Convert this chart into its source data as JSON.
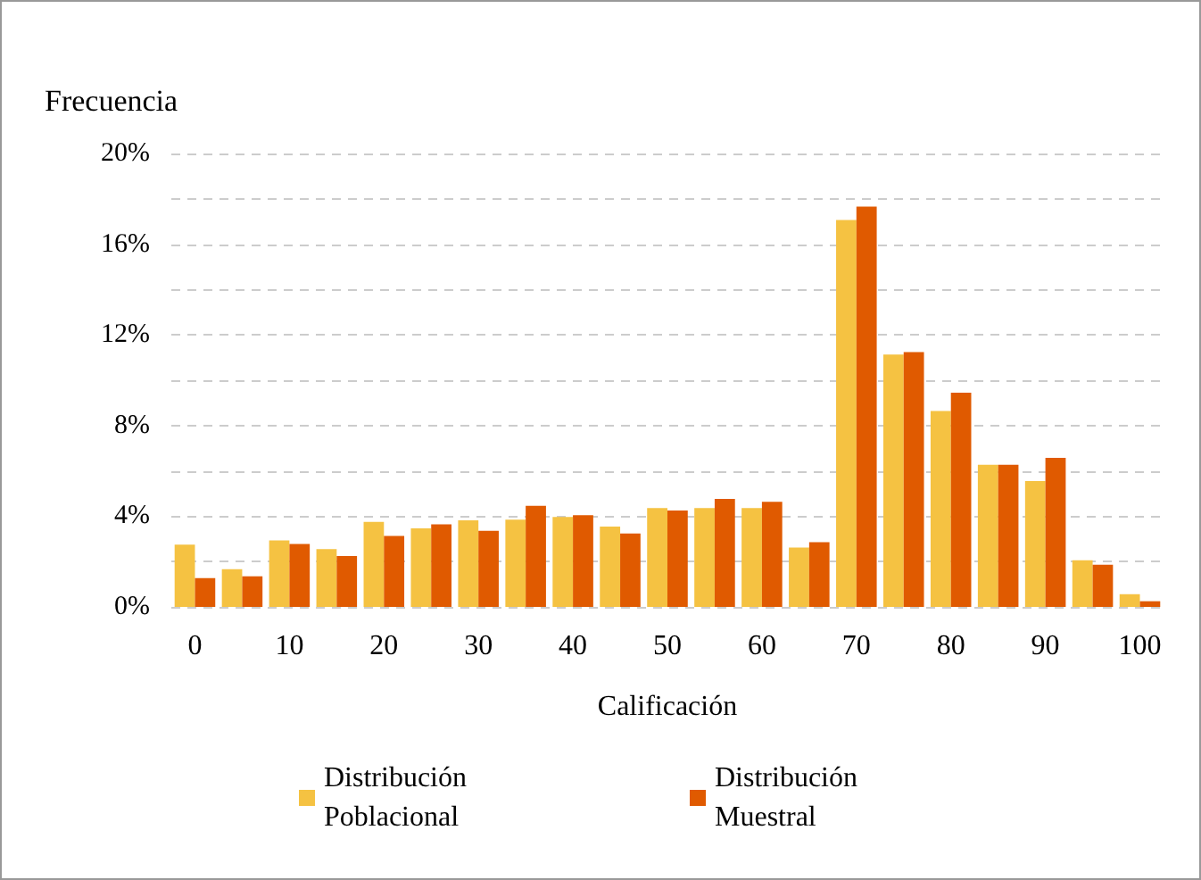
{
  "chart_data": {
    "type": "bar",
    "ylabel": "Frecuencia",
    "xlabel": "Calificación",
    "categories": [
      "0",
      null,
      "10",
      null,
      "20",
      null,
      "30",
      null,
      "40",
      null,
      "50",
      null,
      "60",
      null,
      "70",
      null,
      "80",
      null,
      "90",
      null,
      "100"
    ],
    "series": [
      {
        "name": "Distribución Poblacional",
        "color": "#f5c242",
        "values": [
          2.75,
          1.66,
          2.93,
          2.55,
          3.75,
          3.46,
          3.82,
          3.85,
          3.97,
          3.54,
          4.36,
          4.36,
          4.36,
          2.62,
          17.07,
          11.13,
          8.64,
          6.27,
          5.55,
          2.06,
          0.56
        ]
      },
      {
        "name": "Distribución Muestral",
        "color": "#e05a00",
        "values": [
          1.27,
          1.35,
          2.78,
          2.24,
          3.13,
          3.64,
          3.36,
          4.46,
          4.05,
          3.24,
          4.25,
          4.76,
          4.64,
          2.85,
          17.66,
          11.24,
          9.45,
          6.27,
          6.57,
          1.86,
          0.25
        ]
      }
    ],
    "ylim": [
      0,
      20
    ],
    "yticks": [
      {
        "value": 0,
        "label": "0%"
      },
      {
        "value": 2,
        "label": null
      },
      {
        "value": 4,
        "label": "4%"
      },
      {
        "value": 6,
        "label": null
      },
      {
        "value": 8,
        "label": "8%"
      },
      {
        "value": 10,
        "label": null
      },
      {
        "value": 12,
        "label": "12%"
      },
      {
        "value": 14,
        "label": null
      },
      {
        "value": 16,
        "label": "16%"
      },
      {
        "value": 18,
        "label": null
      },
      {
        "value": 20,
        "label": "20%"
      }
    ],
    "grid": "y",
    "legend": "bottom"
  }
}
